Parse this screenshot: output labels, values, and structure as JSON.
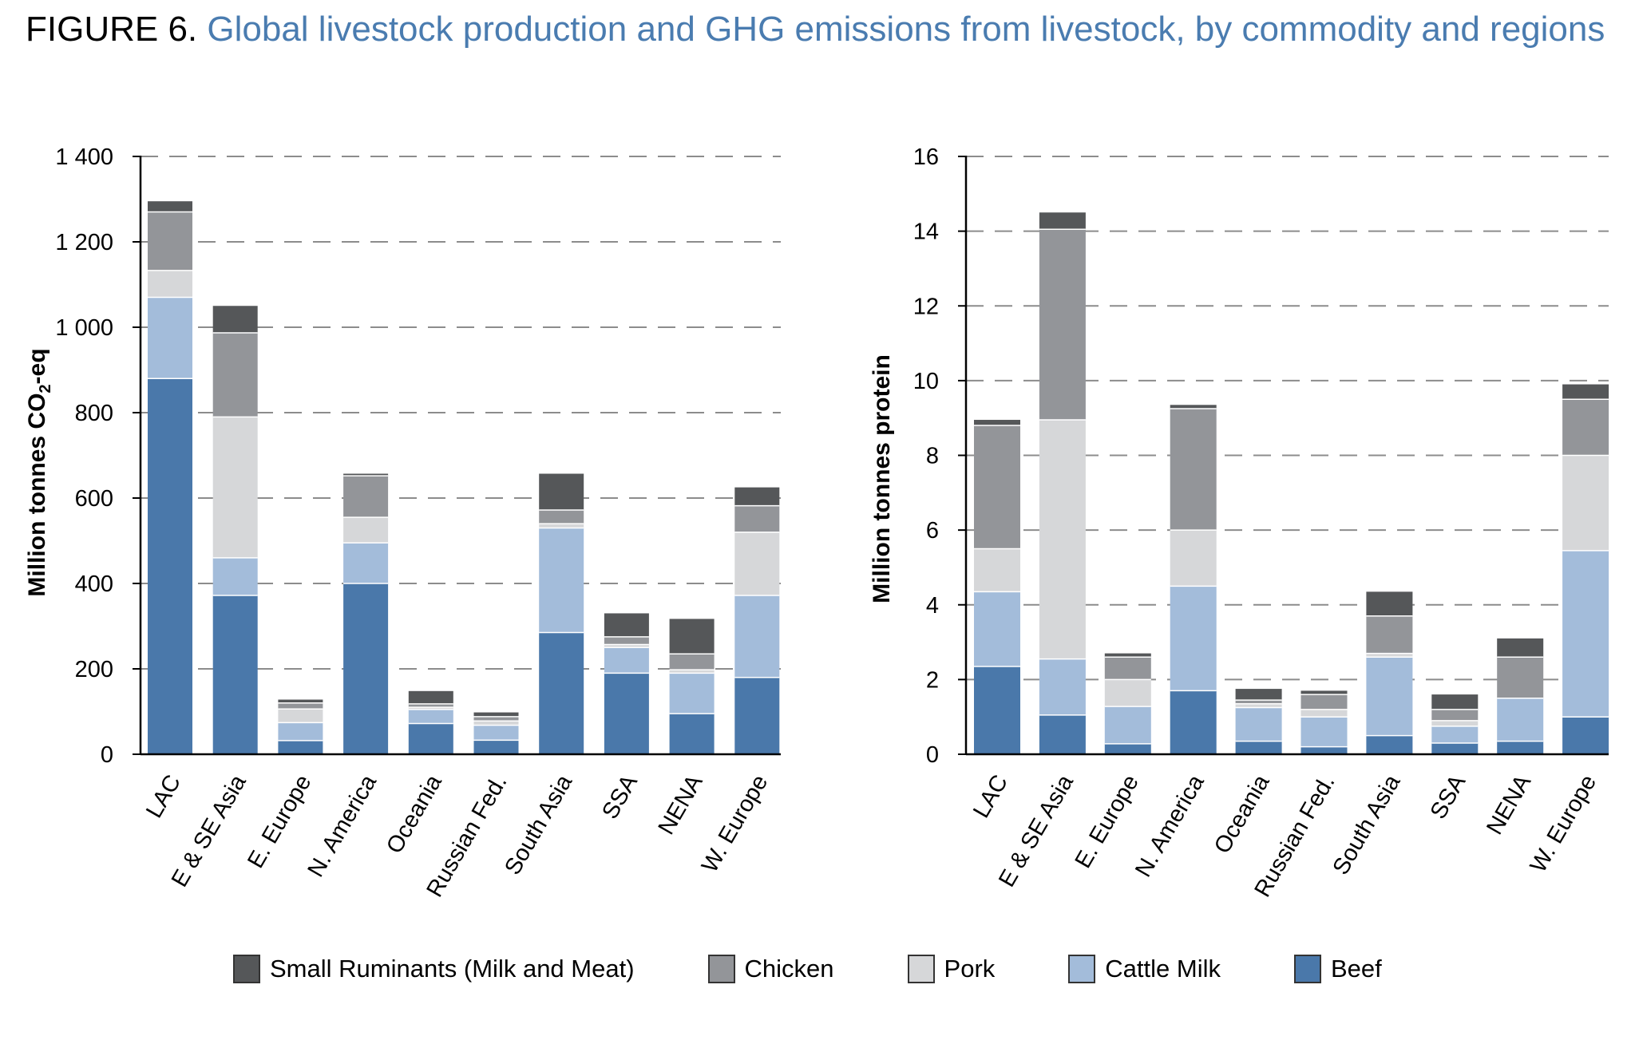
{
  "figure": {
    "label": "FIGURE 6.",
    "title": "Global livestock production and GHG emissions from livestock, by commodity and regions"
  },
  "legend": [
    {
      "name": "Small Ruminants (Milk and Meat)",
      "color": "#555759"
    },
    {
      "name": "Chicken",
      "color": "#939599"
    },
    {
      "name": "Pork",
      "color": "#d6d7d9"
    },
    {
      "name": "Cattle Milk",
      "color": "#a3bcda"
    },
    {
      "name": "Beef",
      "color": "#4a78aa"
    }
  ],
  "chart_data": [
    {
      "type": "bar",
      "stacked": true,
      "ylabel": "Million tonnes CO2-eq",
      "ylim": [
        0,
        1400
      ],
      "yticks": [
        "0",
        "200",
        "400",
        "600",
        "800",
        "1 000",
        "1 200",
        "1 400"
      ],
      "grid": "dashed horizontal",
      "categories": [
        "LAC",
        "E & SE Asia",
        "E. Europe",
        "N. America",
        "Oceania",
        "Russian Fed.",
        "South Asia",
        "SSA",
        "NENA",
        "W. Europe"
      ],
      "series": [
        {
          "name": "Beef",
          "color": "#4a78aa",
          "values": [
            880,
            372,
            32,
            400,
            72,
            33,
            285,
            190,
            95,
            180
          ]
        },
        {
          "name": "Cattle Milk",
          "color": "#a3bcda",
          "values": [
            190,
            88,
            42,
            95,
            33,
            35,
            245,
            60,
            95,
            192
          ]
        },
        {
          "name": "Pork",
          "color": "#d6d7d9",
          "values": [
            63,
            330,
            32,
            60,
            5,
            10,
            10,
            7,
            8,
            148
          ]
        },
        {
          "name": "Chicken",
          "color": "#939599",
          "values": [
            137,
            197,
            14,
            97,
            8,
            10,
            32,
            18,
            37,
            62
          ]
        },
        {
          "name": "Small Ruminants (Milk and Meat)",
          "color": "#555759",
          "values": [
            25,
            63,
            8,
            5,
            30,
            10,
            85,
            55,
            82,
            43
          ]
        }
      ]
    },
    {
      "type": "bar",
      "stacked": true,
      "ylabel": "Million tonnes protein",
      "ylim": [
        0,
        16
      ],
      "yticks": [
        "0",
        "2",
        "4",
        "6",
        "8",
        "10",
        "12",
        "14",
        "16"
      ],
      "grid": "dashed horizontal",
      "categories": [
        "LAC",
        "E & SE Asia",
        "E. Europe",
        "N. America",
        "Oceania",
        "Russian Fed.",
        "South Asia",
        "SSA",
        "NENA",
        "W. Europe"
      ],
      "series": [
        {
          "name": "Beef",
          "color": "#4a78aa",
          "values": [
            2.35,
            1.05,
            0.28,
            1.7,
            0.35,
            0.2,
            0.5,
            0.3,
            0.35,
            1.0
          ]
        },
        {
          "name": "Cattle Milk",
          "color": "#a3bcda",
          "values": [
            2.0,
            1.5,
            1.0,
            2.8,
            0.9,
            0.8,
            2.1,
            0.45,
            1.15,
            4.45
          ]
        },
        {
          "name": "Pork",
          "color": "#d6d7d9",
          "values": [
            1.15,
            6.4,
            0.72,
            1.5,
            0.1,
            0.2,
            0.1,
            0.15,
            0.0,
            2.55
          ]
        },
        {
          "name": "Chicken",
          "color": "#939599",
          "values": [
            3.3,
            5.1,
            0.6,
            3.25,
            0.1,
            0.4,
            1.0,
            0.3,
            1.1,
            1.5
          ]
        },
        {
          "name": "Small Ruminants (Milk and Meat)",
          "color": "#555759",
          "values": [
            0.15,
            0.45,
            0.1,
            0.1,
            0.3,
            0.1,
            0.65,
            0.4,
            0.5,
            0.4
          ]
        }
      ]
    }
  ]
}
